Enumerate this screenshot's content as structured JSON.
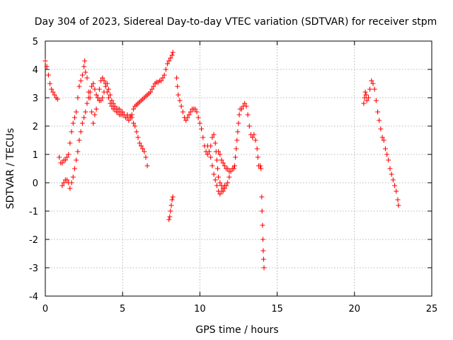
{
  "chart_data": {
    "type": "scatter",
    "title": "Day 304 of 2023, Sidereal Day-to-day VTEC variation (SDTVAR) for receiver stpm",
    "xlabel": "GPS time / hours",
    "ylabel": "SDTVAR / TECUs",
    "xlim": [
      0,
      25
    ],
    "ylim": [
      -4,
      5
    ],
    "xticks": [
      0,
      5,
      10,
      15,
      20,
      25
    ],
    "yticks": [
      -4,
      -3,
      -2,
      -1,
      0,
      1,
      2,
      3,
      4,
      5
    ],
    "grid": true,
    "marker": "+",
    "color": "#ff0000",
    "series": [
      {
        "name": "stpm",
        "points": [
          [
            0.0,
            4.3
          ],
          [
            0.1,
            4.1
          ],
          [
            0.2,
            3.8
          ],
          [
            0.3,
            3.5
          ],
          [
            0.4,
            3.3
          ],
          [
            0.5,
            3.2
          ],
          [
            0.6,
            3.1
          ],
          [
            0.7,
            3.0
          ],
          [
            0.8,
            2.95
          ],
          [
            0.9,
            0.9
          ],
          [
            1.0,
            0.7
          ],
          [
            1.1,
            0.7
          ],
          [
            1.2,
            0.8
          ],
          [
            1.3,
            0.8
          ],
          [
            1.4,
            0.9
          ],
          [
            1.5,
            1.0
          ],
          [
            1.6,
            1.4
          ],
          [
            1.7,
            1.8
          ],
          [
            1.8,
            2.1
          ],
          [
            1.9,
            2.3
          ],
          [
            2.0,
            2.5
          ],
          [
            2.1,
            3.0
          ],
          [
            2.2,
            3.4
          ],
          [
            2.3,
            3.6
          ],
          [
            2.4,
            3.8
          ],
          [
            2.5,
            4.1
          ],
          [
            2.55,
            4.3
          ],
          [
            2.6,
            3.9
          ],
          [
            2.7,
            3.7
          ],
          [
            2.8,
            3.2
          ],
          [
            2.9,
            3.0
          ],
          [
            3.0,
            2.5
          ],
          [
            3.1,
            2.1
          ],
          [
            3.2,
            2.4
          ],
          [
            3.3,
            2.6
          ],
          [
            3.4,
            3.0
          ],
          [
            3.5,
            3.3
          ],
          [
            3.6,
            3.6
          ],
          [
            3.7,
            3.7
          ],
          [
            3.8,
            3.6
          ],
          [
            3.9,
            3.5
          ],
          [
            4.0,
            3.2
          ],
          [
            4.1,
            3.0
          ],
          [
            4.2,
            2.8
          ],
          [
            4.3,
            2.7
          ],
          [
            4.4,
            2.6
          ],
          [
            4.5,
            2.6
          ],
          [
            4.6,
            2.5
          ],
          [
            4.7,
            2.5
          ],
          [
            4.8,
            2.4
          ],
          [
            4.9,
            2.4
          ],
          [
            5.0,
            2.5
          ],
          [
            5.1,
            2.4
          ],
          [
            5.2,
            2.3
          ],
          [
            5.3,
            2.3
          ],
          [
            5.4,
            2.2
          ],
          [
            5.5,
            2.3
          ],
          [
            5.6,
            2.4
          ],
          [
            5.7,
            2.6
          ],
          [
            5.8,
            2.7
          ],
          [
            5.9,
            2.75
          ],
          [
            6.0,
            2.8
          ],
          [
            6.1,
            2.85
          ],
          [
            6.2,
            2.9
          ],
          [
            6.3,
            2.95
          ],
          [
            6.4,
            3.0
          ],
          [
            6.5,
            3.05
          ],
          [
            6.6,
            3.1
          ],
          [
            6.7,
            3.15
          ],
          [
            6.8,
            3.2
          ],
          [
            6.9,
            3.3
          ],
          [
            7.0,
            3.4
          ],
          [
            7.1,
            3.5
          ],
          [
            7.2,
            3.55
          ],
          [
            7.3,
            3.55
          ],
          [
            7.4,
            3.6
          ],
          [
            7.5,
            3.6
          ],
          [
            7.6,
            3.7
          ],
          [
            7.7,
            3.8
          ],
          [
            7.8,
            4.0
          ],
          [
            7.9,
            4.2
          ],
          [
            8.0,
            4.3
          ],
          [
            8.1,
            4.4
          ],
          [
            8.2,
            4.5
          ],
          [
            8.25,
            4.6
          ],
          [
            3.0,
            3.4
          ],
          [
            3.1,
            3.5
          ],
          [
            3.2,
            3.3
          ],
          [
            3.3,
            3.1
          ],
          [
            3.4,
            3.0
          ],
          [
            3.5,
            2.9
          ],
          [
            3.6,
            2.9
          ],
          [
            3.7,
            3.0
          ],
          [
            3.8,
            3.2
          ],
          [
            3.9,
            3.4
          ],
          [
            4.0,
            3.5
          ],
          [
            4.1,
            3.3
          ],
          [
            4.2,
            3.1
          ],
          [
            4.3,
            2.9
          ],
          [
            4.4,
            2.8
          ],
          [
            4.5,
            2.7
          ],
          [
            4.6,
            2.6
          ],
          [
            4.7,
            2.6
          ],
          [
            4.8,
            2.6
          ],
          [
            4.9,
            2.5
          ],
          [
            5.0,
            2.4
          ],
          [
            5.3,
            2.4
          ],
          [
            5.5,
            2.35
          ],
          [
            5.6,
            2.3
          ],
          [
            5.7,
            2.1
          ],
          [
            5.8,
            2.0
          ],
          [
            5.9,
            1.8
          ],
          [
            6.0,
            1.6
          ],
          [
            6.1,
            1.4
          ],
          [
            6.2,
            1.3
          ],
          [
            6.3,
            1.2
          ],
          [
            6.4,
            1.1
          ],
          [
            6.5,
            0.9
          ],
          [
            6.6,
            0.6
          ],
          [
            1.1,
            -0.1
          ],
          [
            1.2,
            0.0
          ],
          [
            1.3,
            0.1
          ],
          [
            1.4,
            0.1
          ],
          [
            1.5,
            0.0
          ],
          [
            1.6,
            -0.2
          ],
          [
            1.7,
            0.0
          ],
          [
            1.8,
            0.2
          ],
          [
            1.9,
            0.5
          ],
          [
            2.0,
            0.8
          ],
          [
            2.1,
            1.1
          ],
          [
            2.2,
            1.5
          ],
          [
            2.3,
            1.8
          ],
          [
            2.4,
            2.1
          ],
          [
            2.5,
            2.3
          ],
          [
            2.6,
            2.5
          ],
          [
            2.7,
            2.8
          ],
          [
            2.8,
            3.0
          ],
          [
            2.9,
            3.2
          ],
          [
            8.0,
            -1.3
          ],
          [
            8.05,
            -1.2
          ],
          [
            8.1,
            -1.0
          ],
          [
            8.15,
            -0.8
          ],
          [
            8.2,
            -0.6
          ],
          [
            8.25,
            -0.5
          ],
          [
            8.5,
            3.7
          ],
          [
            8.55,
            3.4
          ],
          [
            8.6,
            3.1
          ],
          [
            8.7,
            2.9
          ],
          [
            8.8,
            2.7
          ],
          [
            8.9,
            2.5
          ],
          [
            9.0,
            2.3
          ],
          [
            9.1,
            2.2
          ],
          [
            9.2,
            2.3
          ],
          [
            9.3,
            2.4
          ],
          [
            9.4,
            2.5
          ],
          [
            9.5,
            2.6
          ],
          [
            9.6,
            2.6
          ],
          [
            9.7,
            2.6
          ],
          [
            9.8,
            2.5
          ],
          [
            9.9,
            2.3
          ],
          [
            10.0,
            2.1
          ],
          [
            10.1,
            1.9
          ],
          [
            10.2,
            1.6
          ],
          [
            10.3,
            1.3
          ],
          [
            10.4,
            1.1
          ],
          [
            10.5,
            1.0
          ],
          [
            10.6,
            1.1
          ],
          [
            10.7,
            1.3
          ],
          [
            10.8,
            1.6
          ],
          [
            10.9,
            1.7
          ],
          [
            11.0,
            1.4
          ],
          [
            11.05,
            1.1
          ],
          [
            11.1,
            0.8
          ],
          [
            11.15,
            0.5
          ],
          [
            11.2,
            0.2
          ],
          [
            11.3,
            0.0
          ],
          [
            11.4,
            -0.1
          ],
          [
            11.5,
            -0.3
          ],
          [
            11.6,
            -0.2
          ],
          [
            11.7,
            -0.1
          ],
          [
            11.8,
            0.0
          ],
          [
            11.9,
            0.2
          ],
          [
            10.5,
            1.3
          ],
          [
            10.6,
            1.1
          ],
          [
            10.7,
            0.9
          ],
          [
            10.8,
            0.6
          ],
          [
            10.9,
            0.3
          ],
          [
            11.0,
            0.1
          ],
          [
            11.1,
            -0.1
          ],
          [
            11.2,
            -0.3
          ],
          [
            11.3,
            -0.4
          ],
          [
            11.4,
            -0.3
          ],
          [
            11.5,
            -0.2
          ],
          [
            11.6,
            -0.1
          ],
          [
            11.2,
            1.1
          ],
          [
            11.3,
            1.0
          ],
          [
            11.4,
            0.8
          ],
          [
            11.5,
            0.7
          ],
          [
            11.6,
            0.6
          ],
          [
            11.7,
            0.5
          ],
          [
            11.8,
            0.5
          ],
          [
            11.9,
            0.4
          ],
          [
            12.0,
            0.4
          ],
          [
            12.1,
            0.5
          ],
          [
            12.2,
            0.5
          ],
          [
            12.25,
            0.6
          ],
          [
            12.3,
            0.9
          ],
          [
            12.35,
            1.2
          ],
          [
            12.4,
            1.5
          ],
          [
            12.45,
            1.8
          ],
          [
            12.5,
            2.1
          ],
          [
            12.55,
            2.4
          ],
          [
            12.6,
            2.6
          ],
          [
            12.7,
            2.6
          ],
          [
            12.8,
            2.7
          ],
          [
            12.9,
            2.8
          ],
          [
            13.0,
            2.7
          ],
          [
            13.1,
            2.4
          ],
          [
            13.2,
            2.0
          ],
          [
            13.3,
            1.7
          ],
          [
            13.4,
            1.6
          ],
          [
            13.5,
            1.7
          ],
          [
            13.6,
            1.5
          ],
          [
            13.7,
            1.2
          ],
          [
            13.75,
            0.9
          ],
          [
            13.8,
            0.6
          ],
          [
            13.9,
            0.6
          ],
          [
            13.95,
            0.5
          ],
          [
            14.0,
            -0.5
          ],
          [
            14.02,
            -1.0
          ],
          [
            14.05,
            -1.5
          ],
          [
            14.08,
            -2.0
          ],
          [
            14.1,
            -2.4
          ],
          [
            14.12,
            -2.7
          ],
          [
            14.15,
            -3.0
          ],
          [
            20.6,
            2.8
          ],
          [
            20.65,
            3.0
          ],
          [
            20.7,
            3.2
          ],
          [
            20.75,
            3.1
          ],
          [
            20.8,
            2.9
          ],
          [
            20.9,
            3.0
          ],
          [
            21.0,
            3.3
          ],
          [
            21.1,
            3.6
          ],
          [
            21.2,
            3.5
          ],
          [
            21.3,
            3.3
          ],
          [
            21.4,
            2.9
          ],
          [
            21.5,
            2.5
          ],
          [
            21.6,
            2.2
          ],
          [
            21.7,
            1.9
          ],
          [
            21.8,
            1.6
          ],
          [
            21.9,
            1.5
          ],
          [
            22.0,
            1.2
          ],
          [
            22.1,
            1.0
          ],
          [
            22.2,
            0.8
          ],
          [
            22.3,
            0.5
          ],
          [
            22.4,
            0.3
          ],
          [
            22.5,
            0.1
          ],
          [
            22.6,
            -0.1
          ],
          [
            22.7,
            -0.3
          ],
          [
            22.8,
            -0.6
          ],
          [
            22.85,
            -0.8
          ]
        ]
      }
    ]
  }
}
